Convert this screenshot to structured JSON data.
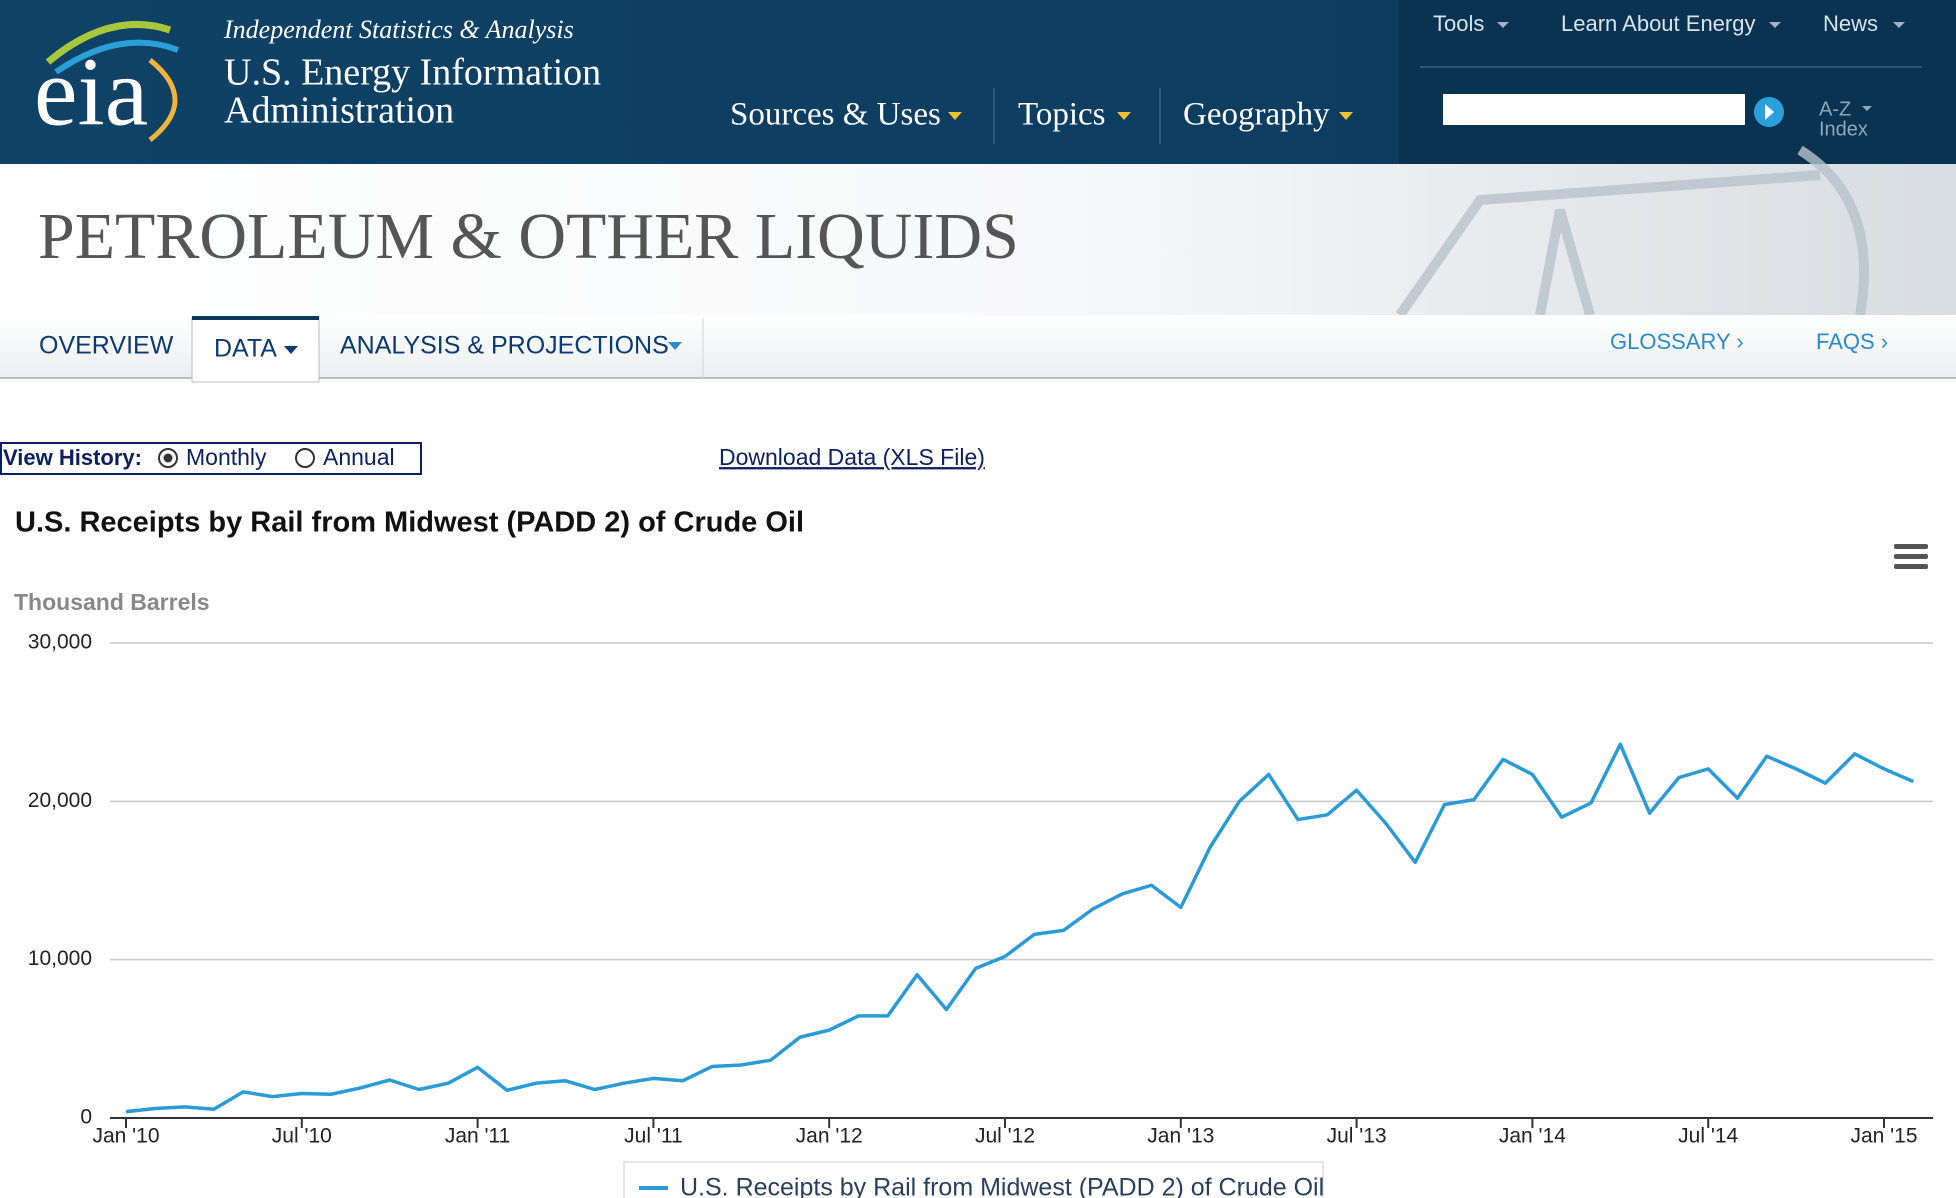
{
  "header": {
    "logo": "eia",
    "tagline": "Independent Statistics & Analysis",
    "org_line1": "U.S. Energy Information",
    "org_line2": "Administration",
    "nav": [
      "Sources & Uses",
      "Topics",
      "Geography"
    ],
    "top_links": [
      "Tools",
      "Learn About Energy",
      "News"
    ],
    "az_line1": "A-Z",
    "az_line2": "Index"
  },
  "banner": {
    "title": "PETROLEUM & OTHER LIQUIDS"
  },
  "tabs": {
    "items": [
      "OVERVIEW",
      "DATA",
      "ANALYSIS & PROJECTIONS"
    ],
    "right": [
      "GLOSSARY ›",
      "FAQS ›"
    ]
  },
  "controls": {
    "label": "View History:",
    "options": [
      "Monthly",
      "Annual"
    ],
    "download": "Download Data (XLS File)"
  },
  "chart_data": {
    "type": "line",
    "title": "U.S. Receipts by Rail from Midwest (PADD 2) of Crude Oil",
    "y_label": "Thousand Barrels",
    "x": [
      "2010-01",
      "2010-02",
      "2010-03",
      "2010-04",
      "2010-05",
      "2010-06",
      "2010-07",
      "2010-08",
      "2010-09",
      "2010-10",
      "2010-11",
      "2010-12",
      "2011-01",
      "2011-02",
      "2011-03",
      "2011-04",
      "2011-05",
      "2011-06",
      "2011-07",
      "2011-08",
      "2011-09",
      "2011-10",
      "2011-11",
      "2011-12",
      "2012-01",
      "2012-02",
      "2012-03",
      "2012-04",
      "2012-05",
      "2012-06",
      "2012-07",
      "2012-08",
      "2012-09",
      "2012-10",
      "2012-11",
      "2012-12",
      "2013-01",
      "2013-02",
      "2013-03",
      "2013-04",
      "2013-05",
      "2013-06",
      "2013-07",
      "2013-08",
      "2013-09",
      "2013-10",
      "2013-11",
      "2013-12",
      "2014-01",
      "2014-02",
      "2014-03",
      "2014-04",
      "2014-05",
      "2014-06",
      "2014-07",
      "2014-08",
      "2014-09",
      "2014-10",
      "2014-11",
      "2014-12",
      "2015-01",
      "2015-02"
    ],
    "series": [
      {
        "name": "U.S. Receipts by Rail from Midwest (PADD 2) of Crude Oil",
        "color": "#2b9bd6",
        "values": [
          400,
          600,
          700,
          550,
          1650,
          1350,
          1550,
          1500,
          1900,
          2400,
          1800,
          2200,
          3200,
          1750,
          2200,
          2350,
          1800,
          2200,
          2500,
          2350,
          3250,
          3350,
          3650,
          5100,
          5550,
          6450,
          6450,
          9050,
          6850,
          9450,
          10200,
          11600,
          11850,
          13200,
          14150,
          14700,
          13300,
          17100,
          20000,
          21700,
          18850,
          19150,
          20700,
          18600,
          16150,
          19800,
          20100,
          22650,
          21700,
          19000,
          19900,
          23600,
          19250,
          21500,
          22050,
          20200,
          22850,
          22050,
          21150,
          23000,
          22050,
          21250
        ]
      }
    ],
    "ylim": [
      0,
      30000
    ],
    "yticks": [
      0,
      {
        "value": 10000,
        "label": "10,000"
      },
      {
        "value": 20000,
        "label": "20,000"
      },
      {
        "value": 30000,
        "label": "30,000"
      }
    ],
    "xticks": [
      {
        "value": "2010-01",
        "label": "Jan '10"
      },
      {
        "value": "2010-07",
        "label": "Jul '10"
      },
      {
        "value": "2011-01",
        "label": "Jan '11"
      },
      {
        "value": "2011-07",
        "label": "Jul '11"
      },
      {
        "value": "2012-01",
        "label": "Jan '12"
      },
      {
        "value": "2012-07",
        "label": "Jul '12"
      },
      {
        "value": "2013-01",
        "label": "Jan '13"
      },
      {
        "value": "2013-07",
        "label": "Jul '13"
      },
      {
        "value": "2014-01",
        "label": "Jan '14"
      },
      {
        "value": "2014-07",
        "label": "Jul '14"
      },
      {
        "value": "2015-01",
        "label": "Jan '15"
      }
    ],
    "grid": true
  }
}
